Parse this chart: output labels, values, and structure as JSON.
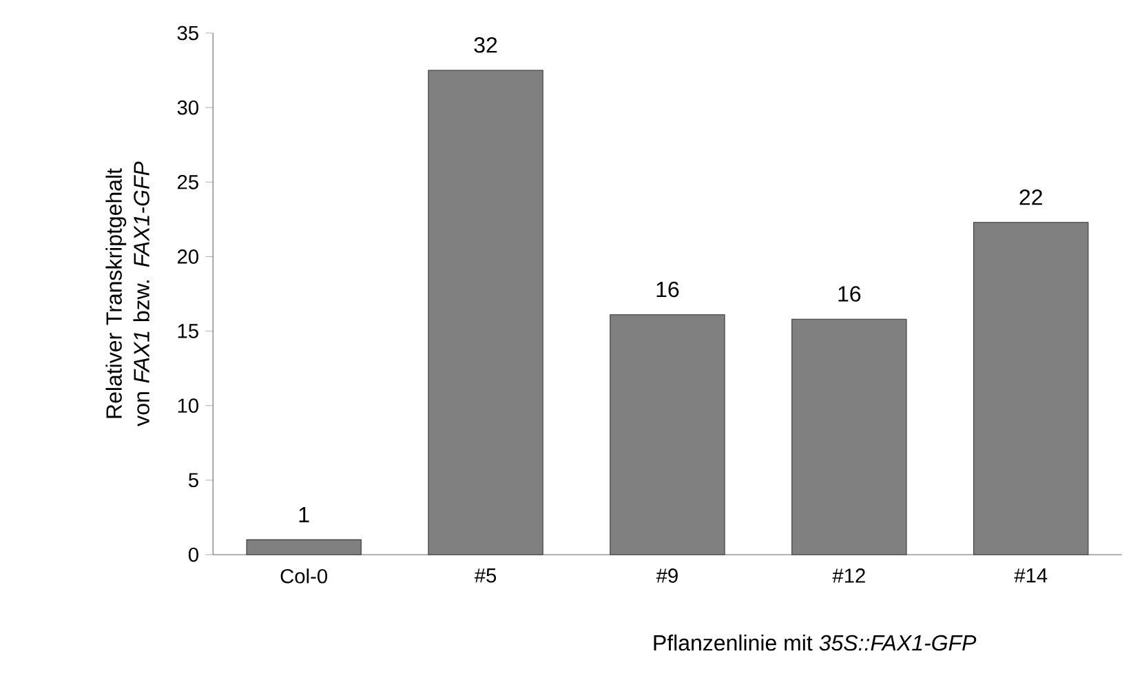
{
  "chart_data": {
    "type": "bar",
    "xlabel": "Pflanzenlinie mit *35S::FAX1-GFP*",
    "ylabel": "Relativer Transkriptgehalt von *FAX1* bzw. *FAX1-GFP*",
    "categories": [
      "Col-0",
      "#5",
      "#9",
      "#12",
      "#14"
    ],
    "values": [
      1,
      32.5,
      16.1,
      15.8,
      22.3
    ],
    "value_labels": [
      "1",
      "32",
      "16",
      "16",
      "22"
    ],
    "color": "#808080",
    "ylim": [
      0,
      35
    ],
    "yticks": [
      0,
      5,
      10,
      15,
      20,
      25,
      30,
      35
    ]
  }
}
